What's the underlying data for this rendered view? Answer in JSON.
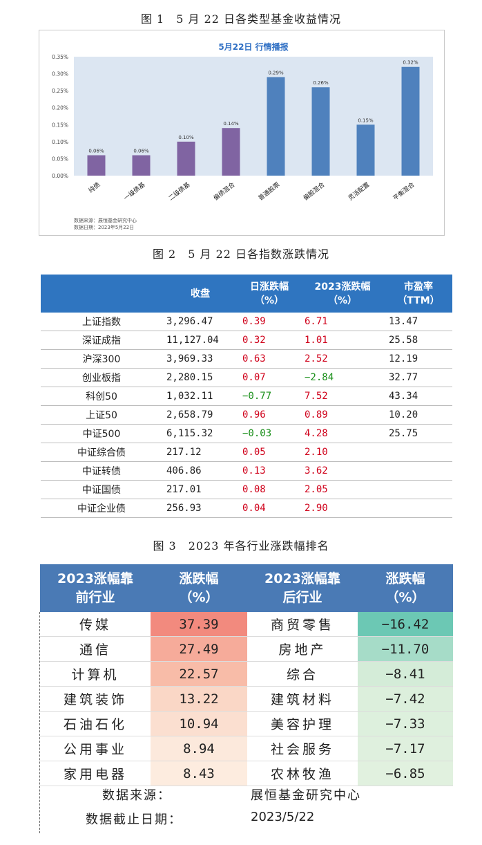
{
  "fig1_caption": "图 1　5 月 22 日各类型基金收益情况",
  "fig2_caption": "图 2　5 月 22 日各指数涨跌情况",
  "fig3_caption": "图 3　2023 年各行业涨跌幅排名",
  "chart_data": {
    "type": "bar",
    "title": "5月22日 行情播报",
    "categories": [
      "纯债",
      "一级债基",
      "二级债基",
      "偏债混合",
      "普通股票",
      "偏股混合",
      "灵活配置",
      "平衡混合"
    ],
    "values": [
      0.06,
      0.06,
      0.1,
      0.14,
      0.29,
      0.26,
      0.15,
      0.32
    ],
    "value_labels": [
      "0.06%",
      "0.06%",
      "0.10%",
      "0.14%",
      "0.29%",
      "0.26%",
      "0.15%",
      "0.32%"
    ],
    "bar_colors": [
      "#8064a2",
      "#8064a2",
      "#8064a2",
      "#8064a2",
      "#4f81bd",
      "#4f81bd",
      "#4f81bd",
      "#4f81bd"
    ],
    "yticks": [
      "0.00%",
      "0.05%",
      "0.10%",
      "0.15%",
      "0.20%",
      "0.25%",
      "0.30%",
      "0.35%"
    ],
    "ylim": [
      0,
      0.35
    ],
    "plot_background": "#dce6f2",
    "source_line": "数据来源：展恒基金研究中心",
    "date_line": "数据日期：2023年5月22日"
  },
  "table2": {
    "headers": [
      "",
      "收盘",
      "日涨跌幅\n（%）",
      "2023涨跌幅\n（%）",
      "市盈率\n（TTM）"
    ],
    "rows": [
      {
        "name": "上证指数",
        "close": "3,296.47",
        "day": "0.39",
        "ytd": "6.71",
        "pe": "13.47"
      },
      {
        "name": "深证成指",
        "close": "11,127.04",
        "day": "0.32",
        "ytd": "1.01",
        "pe": "25.58"
      },
      {
        "name": "沪深300",
        "close": "3,969.33",
        "day": "0.63",
        "ytd": "2.52",
        "pe": "12.19"
      },
      {
        "name": "创业板指",
        "close": "2,280.15",
        "day": "0.07",
        "ytd": "−2.84",
        "pe": "32.77"
      },
      {
        "name": "科创50",
        "close": "1,032.11",
        "day": "−0.77",
        "ytd": "7.52",
        "pe": "43.34"
      },
      {
        "name": "上证50",
        "close": "2,658.79",
        "day": "0.96",
        "ytd": "0.89",
        "pe": "10.20"
      },
      {
        "name": "中证500",
        "close": "6,115.32",
        "day": "−0.03",
        "ytd": "4.28",
        "pe": "25.75"
      },
      {
        "name": "中证综合债",
        "close": "217.12",
        "day": "0.05",
        "ytd": "2.10",
        "pe": ""
      },
      {
        "name": "中证转债",
        "close": "406.86",
        "day": "0.13",
        "ytd": "3.62",
        "pe": ""
      },
      {
        "name": "中证国债",
        "close": "217.01",
        "day": "0.08",
        "ytd": "2.05",
        "pe": ""
      },
      {
        "name": "中证企业债",
        "close": "256.93",
        "day": "0.04",
        "ytd": "2.90",
        "pe": ""
      }
    ]
  },
  "table3": {
    "headers": [
      "2023涨幅靠\n前行业",
      "涨跌幅\n（%）",
      "2023涨幅靠\n后行业",
      "涨跌幅\n（%）"
    ],
    "rows": [
      {
        "top": "传媒",
        "top_val": "37.39",
        "top_color": "#f28a7e",
        "bottom": "商贸零售",
        "bottom_val": "−16.42",
        "bottom_color": "#6cc8b4"
      },
      {
        "top": "通信",
        "top_val": "27.49",
        "top_color": "#f6ab9a",
        "bottom": "房地产",
        "bottom_val": "−11.70",
        "bottom_color": "#a6dcc8"
      },
      {
        "top": "计算机",
        "top_val": "22.57",
        "top_color": "#f8bca8",
        "bottom": "综合",
        "bottom_val": "−8.41",
        "bottom_color": "#d4ecd8"
      },
      {
        "top": "建筑装饰",
        "top_val": "13.22",
        "top_color": "#fad7c6",
        "bottom": "建筑材料",
        "bottom_val": "−7.42",
        "bottom_color": "#dcefdc"
      },
      {
        "top": "石油石化",
        "top_val": "10.94",
        "top_color": "#fbdfd0",
        "bottom": "美容护理",
        "bottom_val": "−7.33",
        "bottom_color": "#ddf0dd"
      },
      {
        "top": "公用事业",
        "top_val": "8.94",
        "top_color": "#fce9dc",
        "bottom": "社会服务",
        "bottom_val": "−7.17",
        "bottom_color": "#dff0de"
      },
      {
        "top": "家用电器",
        "top_val": "8.43",
        "top_color": "#fdecdf",
        "bottom": "农林牧渔",
        "bottom_val": "−6.85",
        "bottom_color": "#e1f1df"
      }
    ],
    "footer": {
      "source_label": "数据来源：",
      "source_value": "展恒基金研究中心",
      "date_label": "数据截止日期：",
      "date_value": "2023/5/22"
    }
  }
}
